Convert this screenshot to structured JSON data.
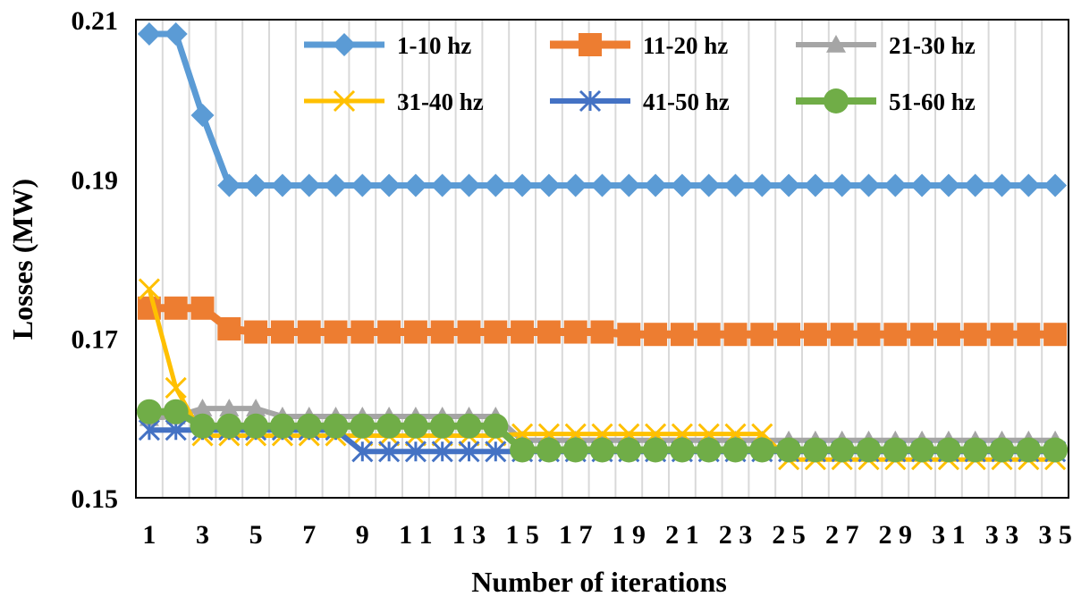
{
  "chart_data": {
    "type": "line",
    "xlabel": "Number of iterations",
    "ylabel": "Losses (MW)",
    "x": [
      1,
      2,
      3,
      4,
      5,
      6,
      7,
      8,
      9,
      10,
      11,
      12,
      13,
      14,
      15,
      16,
      17,
      18,
      19,
      20,
      21,
      22,
      23,
      24,
      25,
      26,
      27,
      28,
      29,
      30,
      31,
      32,
      33,
      34,
      35
    ],
    "x_tick_labels": [
      "1",
      "3",
      "5",
      "7",
      "9",
      "1 1",
      "1 3",
      "1 5",
      "1 7",
      "1 9",
      "2 1",
      "2 3",
      "2 5",
      "2 7",
      "2 9",
      "3 1",
      "3 3",
      "3 5"
    ],
    "y_tick_labels": [
      "0.15",
      "0.17",
      "0.19",
      "0.21"
    ],
    "ylim": [
      0.15,
      0.21
    ],
    "grid": "vertical",
    "legend_position": "top-right",
    "series": [
      {
        "name": "1-10 hz",
        "color": "#5B9BD5",
        "marker": "diamond",
        "values": [
          0.2082,
          0.2082,
          0.198,
          0.1892,
          0.1892,
          0.1892,
          0.1892,
          0.1892,
          0.1892,
          0.1892,
          0.1892,
          0.1892,
          0.1892,
          0.1892,
          0.1892,
          0.1892,
          0.1892,
          0.1892,
          0.1892,
          0.1892,
          0.1892,
          0.1892,
          0.1892,
          0.1892,
          0.1892,
          0.1892,
          0.1892,
          0.1892,
          0.1892,
          0.1892,
          0.1892,
          0.1892,
          0.1892,
          0.1892,
          0.1892
        ]
      },
      {
        "name": "11-20 hz",
        "color": "#ED7D31",
        "marker": "square",
        "values": [
          0.1738,
          0.1738,
          0.1738,
          0.1712,
          0.1708,
          0.1708,
          0.1708,
          0.1708,
          0.1708,
          0.1708,
          0.1708,
          0.1708,
          0.1708,
          0.1708,
          0.1708,
          0.1708,
          0.1708,
          0.1708,
          0.1705,
          0.1705,
          0.1705,
          0.1705,
          0.1705,
          0.1705,
          0.1705,
          0.1705,
          0.1705,
          0.1705,
          0.1705,
          0.1705,
          0.1705,
          0.1705,
          0.1705,
          0.1705,
          0.1705
        ]
      },
      {
        "name": "21-30 hz",
        "color": "#A5A5A5",
        "marker": "triangle",
        "values": [
          0.16,
          0.1602,
          0.1612,
          0.1612,
          0.1612,
          0.1602,
          0.1602,
          0.1602,
          0.1602,
          0.1602,
          0.1602,
          0.1602,
          0.1602,
          0.1602,
          0.1572,
          0.1572,
          0.1572,
          0.1572,
          0.1572,
          0.1572,
          0.1572,
          0.1572,
          0.1572,
          0.1572,
          0.1572,
          0.1572,
          0.1572,
          0.1572,
          0.1572,
          0.1572,
          0.1572,
          0.1572,
          0.1572,
          0.1572,
          0.1572
        ]
      },
      {
        "name": "31-40 hz",
        "color": "#FFC000",
        "marker": "x",
        "values": [
          0.1762,
          0.1638,
          0.1578,
          0.1578,
          0.1578,
          0.1578,
          0.1578,
          0.1578,
          0.1578,
          0.1578,
          0.1578,
          0.1578,
          0.1578,
          0.1578,
          0.158,
          0.158,
          0.158,
          0.158,
          0.158,
          0.158,
          0.158,
          0.158,
          0.158,
          0.158,
          0.1548,
          0.1548,
          0.1548,
          0.1548,
          0.1548,
          0.1548,
          0.1548,
          0.1548,
          0.1548,
          0.1548,
          0.1548
        ]
      },
      {
        "name": "41-50 hz",
        "color": "#4472C4",
        "marker": "star",
        "values": [
          0.1585,
          0.1585,
          0.1585,
          0.1585,
          0.1585,
          0.1585,
          0.1585,
          0.1585,
          0.1558,
          0.1558,
          0.1558,
          0.1558,
          0.1558,
          0.1558,
          0.1558,
          0.1558,
          0.1558,
          0.1558,
          0.1558,
          0.1558,
          0.1558,
          0.1558,
          0.1558,
          0.1558,
          0.1558,
          0.1558,
          0.1558,
          0.1558,
          0.1558,
          0.1558,
          0.1558,
          0.1558,
          0.1558,
          0.1558,
          0.1558
        ]
      },
      {
        "name": "51-60 hz",
        "color": "#70AD47",
        "marker": "circle",
        "values": [
          0.1608,
          0.1608,
          0.159,
          0.159,
          0.159,
          0.159,
          0.159,
          0.159,
          0.159,
          0.159,
          0.159,
          0.159,
          0.159,
          0.159,
          0.156,
          0.156,
          0.156,
          0.156,
          0.156,
          0.156,
          0.156,
          0.156,
          0.156,
          0.156,
          0.156,
          0.156,
          0.156,
          0.156,
          0.156,
          0.156,
          0.156,
          0.156,
          0.156,
          0.156,
          0.156
        ]
      }
    ]
  }
}
